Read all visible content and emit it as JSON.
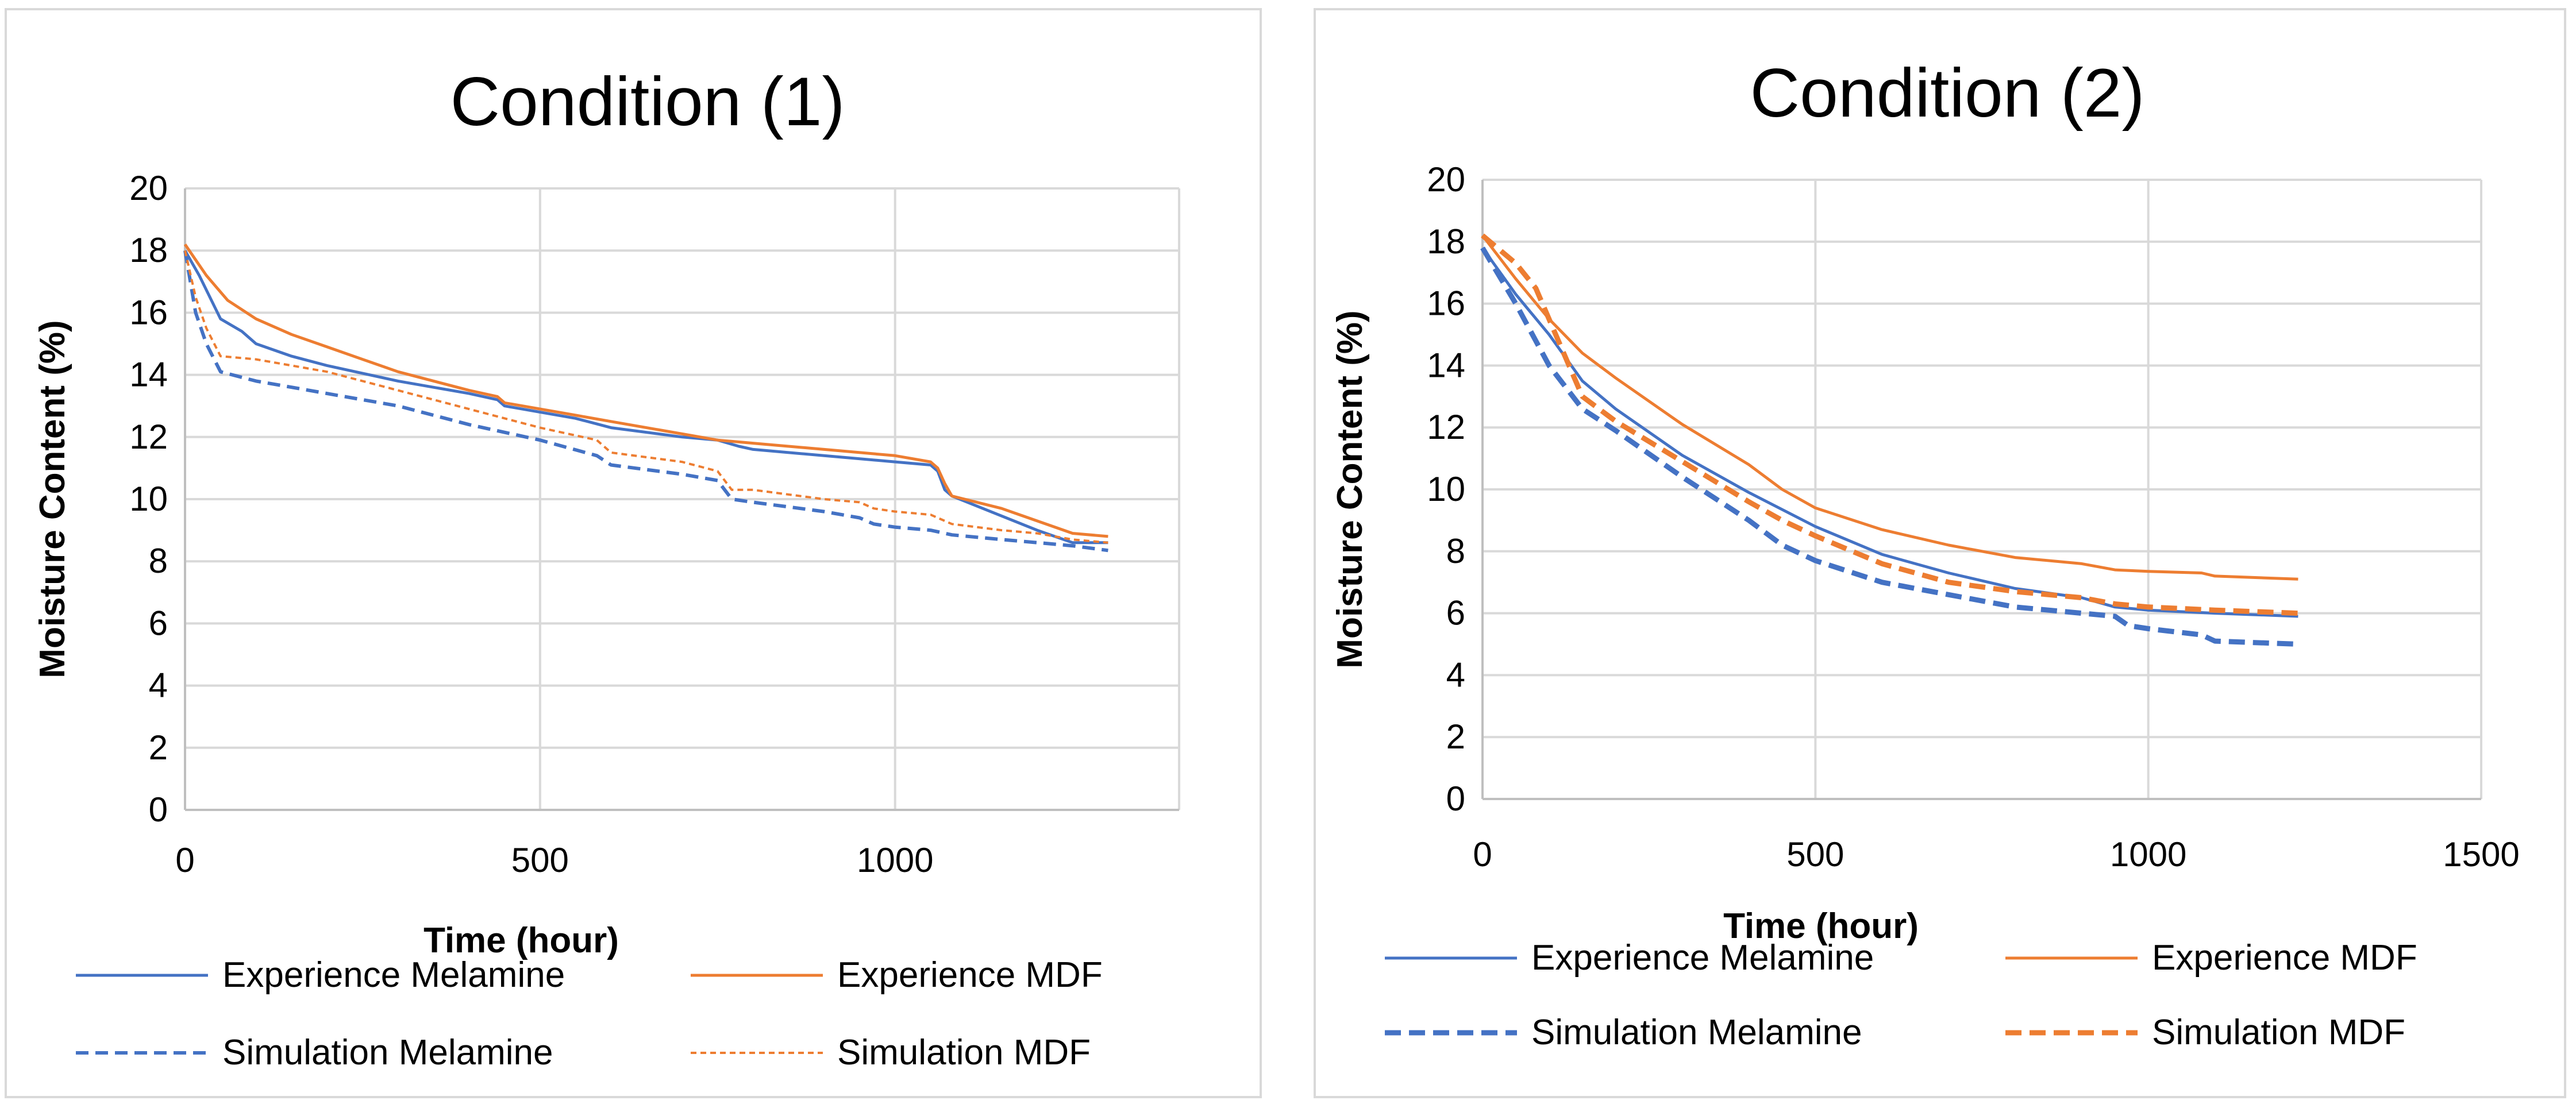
{
  "chart_data": [
    {
      "type": "line",
      "title": "Condition (1)",
      "xlabel": "Time (hour)",
      "ylabel": "Moisture Content (%)",
      "xlim": [
        0,
        1400
      ],
      "ylim": [
        0,
        20
      ],
      "xticks": [
        "0",
        "500",
        "1000"
      ],
      "xtick_values": [
        0,
        500,
        1000
      ],
      "yticks": [
        "0",
        "2",
        "4",
        "6",
        "8",
        "10",
        "12",
        "14",
        "16",
        "18",
        "20"
      ],
      "ytick_values": [
        0,
        2,
        4,
        6,
        8,
        10,
        12,
        14,
        16,
        18,
        20
      ],
      "grid": true,
      "legend_position": "bottom",
      "series": [
        {
          "name": "Experience Melamine",
          "color": "#4472C4",
          "style": "solid",
          "points": [
            [
              0,
              18
            ],
            [
              20,
              17.2
            ],
            [
              50,
              15.8
            ],
            [
              80,
              15.4
            ],
            [
              100,
              15
            ],
            [
              150,
              14.6
            ],
            [
              200,
              14.3
            ],
            [
              300,
              13.8
            ],
            [
              400,
              13.4
            ],
            [
              440,
              13.2
            ],
            [
              450,
              13.0
            ],
            [
              550,
              12.6
            ],
            [
              600,
              12.3
            ],
            [
              700,
              12.0
            ],
            [
              750,
              11.9
            ],
            [
              780,
              11.7
            ],
            [
              800,
              11.6
            ],
            [
              900,
              11.4
            ],
            [
              1000,
              11.2
            ],
            [
              1050,
              11.1
            ],
            [
              1060,
              10.9
            ],
            [
              1070,
              10.3
            ],
            [
              1080,
              10.1
            ],
            [
              1200,
              9.0
            ],
            [
              1250,
              8.6
            ],
            [
              1300,
              8.6
            ]
          ]
        },
        {
          "name": "Experience MDF",
          "color": "#ED7D31",
          "style": "solid",
          "points": [
            [
              0,
              18.2
            ],
            [
              30,
              17.2
            ],
            [
              60,
              16.4
            ],
            [
              100,
              15.8
            ],
            [
              150,
              15.3
            ],
            [
              200,
              14.9
            ],
            [
              300,
              14.1
            ],
            [
              400,
              13.5
            ],
            [
              440,
              13.3
            ],
            [
              450,
              13.1
            ],
            [
              550,
              12.7
            ],
            [
              600,
              12.5
            ],
            [
              700,
              12.1
            ],
            [
              750,
              11.9
            ],
            [
              800,
              11.8
            ],
            [
              900,
              11.6
            ],
            [
              1000,
              11.4
            ],
            [
              1050,
              11.2
            ],
            [
              1060,
              11.0
            ],
            [
              1070,
              10.5
            ],
            [
              1080,
              10.1
            ],
            [
              1150,
              9.7
            ],
            [
              1200,
              9.3
            ],
            [
              1250,
              8.9
            ],
            [
              1300,
              8.8
            ]
          ]
        },
        {
          "name": "Simulation Melamine",
          "color": "#4472C4",
          "style": "dashed",
          "points": [
            [
              0,
              18
            ],
            [
              15,
              16
            ],
            [
              30,
              15
            ],
            [
              50,
              14.1
            ],
            [
              100,
              13.8
            ],
            [
              150,
              13.6
            ],
            [
              200,
              13.4
            ],
            [
              300,
              13.0
            ],
            [
              400,
              12.4
            ],
            [
              500,
              11.9
            ],
            [
              580,
              11.4
            ],
            [
              600,
              11.1
            ],
            [
              700,
              10.8
            ],
            [
              750,
              10.6
            ],
            [
              770,
              10.0
            ],
            [
              800,
              9.9
            ],
            [
              900,
              9.6
            ],
            [
              950,
              9.4
            ],
            [
              970,
              9.2
            ],
            [
              1000,
              9.1
            ],
            [
              1050,
              9.0
            ],
            [
              1080,
              8.85
            ],
            [
              1150,
              8.7
            ],
            [
              1200,
              8.6
            ],
            [
              1250,
              8.5
            ],
            [
              1300,
              8.35
            ]
          ]
        },
        {
          "name": "Simulation MDF",
          "color": "#ED7D31",
          "style": "dotted",
          "points": [
            [
              0,
              18
            ],
            [
              15,
              16.5
            ],
            [
              30,
              15.5
            ],
            [
              50,
              14.6
            ],
            [
              100,
              14.5
            ],
            [
              150,
              14.3
            ],
            [
              200,
              14.1
            ],
            [
              300,
              13.5
            ],
            [
              400,
              12.9
            ],
            [
              500,
              12.3
            ],
            [
              580,
              11.9
            ],
            [
              600,
              11.5
            ],
            [
              700,
              11.2
            ],
            [
              750,
              10.9
            ],
            [
              770,
              10.3
            ],
            [
              800,
              10.3
            ],
            [
              900,
              10.0
            ],
            [
              950,
              9.9
            ],
            [
              970,
              9.7
            ],
            [
              1000,
              9.6
            ],
            [
              1050,
              9.5
            ],
            [
              1080,
              9.2
            ],
            [
              1150,
              9.0
            ],
            [
              1200,
              8.9
            ],
            [
              1250,
              8.7
            ],
            [
              1300,
              8.6
            ]
          ]
        }
      ]
    },
    {
      "type": "line",
      "title": "Condition (2)",
      "xlabel": "Time (hour)",
      "ylabel": "Moisture Content (%)",
      "xlim": [
        0,
        1500
      ],
      "ylim": [
        0,
        20
      ],
      "xticks": [
        "0",
        "500",
        "1000",
        "1500"
      ],
      "xtick_values": [
        0,
        500,
        1000,
        1500
      ],
      "yticks": [
        "0",
        "2",
        "4",
        "6",
        "8",
        "10",
        "12",
        "14",
        "16",
        "18",
        "20"
      ],
      "ytick_values": [
        0,
        2,
        4,
        6,
        8,
        10,
        12,
        14,
        16,
        18,
        20
      ],
      "grid": true,
      "legend_position": "bottom",
      "series": [
        {
          "name": "Experience Melamine",
          "color": "#4472C4",
          "style": "solid",
          "points": [
            [
              0,
              17.8
            ],
            [
              50,
              16.3
            ],
            [
              100,
              15.0
            ],
            [
              150,
              13.5
            ],
            [
              200,
              12.6
            ],
            [
              300,
              11.1
            ],
            [
              400,
              9.9
            ],
            [
              500,
              8.8
            ],
            [
              600,
              7.9
            ],
            [
              700,
              7.3
            ],
            [
              800,
              6.8
            ],
            [
              900,
              6.5
            ],
            [
              950,
              6.2
            ],
            [
              1000,
              6.1
            ],
            [
              1100,
              6.0
            ],
            [
              1225,
              5.9
            ]
          ]
        },
        {
          "name": "Experience MDF",
          "color": "#ED7D31",
          "style": "solid",
          "points": [
            [
              0,
              18.2
            ],
            [
              50,
              16.8
            ],
            [
              100,
              15.5
            ],
            [
              150,
              14.4
            ],
            [
              200,
              13.6
            ],
            [
              300,
              12.1
            ],
            [
              400,
              10.8
            ],
            [
              450,
              10.0
            ],
            [
              500,
              9.4
            ],
            [
              600,
              8.7
            ],
            [
              700,
              8.2
            ],
            [
              800,
              7.8
            ],
            [
              900,
              7.6
            ],
            [
              950,
              7.4
            ],
            [
              1000,
              7.35
            ],
            [
              1080,
              7.3
            ],
            [
              1100,
              7.2
            ],
            [
              1225,
              7.1
            ]
          ]
        },
        {
          "name": "Simulation Melamine",
          "color": "#4472C4",
          "style": "dashed",
          "points": [
            [
              0,
              17.8
            ],
            [
              50,
              16.0
            ],
            [
              100,
              14.0
            ],
            [
              150,
              12.6
            ],
            [
              200,
              11.9
            ],
            [
              300,
              10.4
            ],
            [
              400,
              9.0
            ],
            [
              450,
              8.2
            ],
            [
              500,
              7.7
            ],
            [
              600,
              7.0
            ],
            [
              700,
              6.6
            ],
            [
              800,
              6.2
            ],
            [
              900,
              6.0
            ],
            [
              950,
              5.9
            ],
            [
              970,
              5.6
            ],
            [
              1000,
              5.5
            ],
            [
              1080,
              5.3
            ],
            [
              1100,
              5.1
            ],
            [
              1225,
              5.0
            ]
          ]
        },
        {
          "name": "Simulation MDF",
          "color": "#ED7D31",
          "style": "dashed",
          "points": [
            [
              0,
              18.2
            ],
            [
              50,
              17.3
            ],
            [
              80,
              16.5
            ],
            [
              120,
              14.5
            ],
            [
              150,
              13.0
            ],
            [
              200,
              12.2
            ],
            [
              300,
              10.9
            ],
            [
              400,
              9.6
            ],
            [
              450,
              9.0
            ],
            [
              500,
              8.5
            ],
            [
              600,
              7.6
            ],
            [
              700,
              7.0
            ],
            [
              800,
              6.7
            ],
            [
              900,
              6.5
            ],
            [
              950,
              6.3
            ],
            [
              1000,
              6.2
            ],
            [
              1100,
              6.1
            ],
            [
              1225,
              6.0
            ]
          ]
        }
      ]
    }
  ]
}
